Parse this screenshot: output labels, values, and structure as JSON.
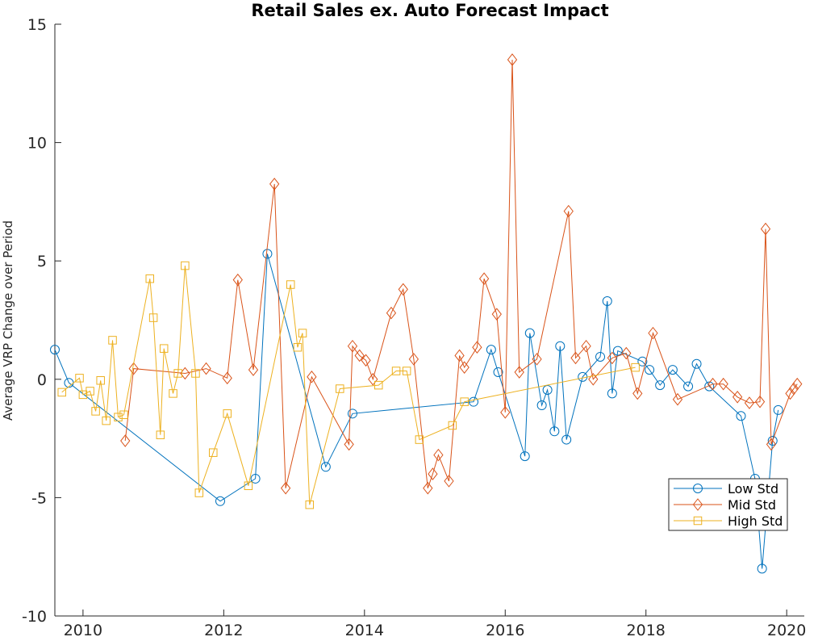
{
  "chart_data": {
    "type": "line",
    "title": "Retail Sales ex. Auto Forecast Impact",
    "xlabel": "",
    "ylabel": "Average VRP Change over Period",
    "xlim": [
      2009.6,
      2020.25
    ],
    "ylim": [
      -10,
      15
    ],
    "xticks": [
      2010,
      2012,
      2014,
      2016,
      2018,
      2020
    ],
    "yticks": [
      -10,
      -5,
      0,
      5,
      10,
      15
    ],
    "legend_position": "lower-right",
    "series": [
      {
        "name": "Low Std",
        "color": "#0072BD",
        "marker": "circle",
        "x": [
          2009.6,
          2009.8,
          2011.95,
          2012.45,
          2012.62,
          2013.45,
          2013.83,
          2015.55,
          2015.8,
          2015.9,
          2016.28,
          2016.35,
          2016.52,
          2016.6,
          2016.7,
          2016.78,
          2016.87,
          2017.1,
          2017.35,
          2017.45,
          2017.52,
          2017.6,
          2017.95,
          2018.05,
          2018.2,
          2018.38,
          2018.6,
          2018.72,
          2018.9,
          2019.35,
          2019.55,
          2019.65,
          2019.8,
          2019.88
        ],
        "y": [
          1.25,
          -0.15,
          -5.15,
          -4.2,
          5.3,
          -3.7,
          -1.45,
          -0.95,
          1.25,
          0.3,
          -3.25,
          1.95,
          -1.1,
          -0.45,
          -2.2,
          1.4,
          -2.55,
          0.1,
          0.95,
          3.3,
          -0.6,
          1.2,
          0.75,
          0.4,
          -0.25,
          0.4,
          -0.3,
          0.65,
          -0.3,
          -1.55,
          -4.2,
          -8.0,
          -2.6,
          -1.3
        ]
      },
      {
        "name": "Mid Std",
        "color": "#D95319",
        "marker": "diamond",
        "x": [
          2010.6,
          2010.72,
          2011.45,
          2011.75,
          2012.05,
          2012.2,
          2012.42,
          2012.72,
          2012.88,
          2013.25,
          2013.78,
          2013.83,
          2013.93,
          2014.02,
          2014.12,
          2014.38,
          2014.55,
          2014.7,
          2014.9,
          2014.97,
          2015.05,
          2015.2,
          2015.35,
          2015.42,
          2015.6,
          2015.7,
          2015.88,
          2016.0,
          2016.1,
          2016.2,
          2016.45,
          2016.9,
          2017.0,
          2017.15,
          2017.25,
          2017.52,
          2017.72,
          2017.88,
          2018.1,
          2018.45,
          2018.95,
          2019.1,
          2019.3,
          2019.47,
          2019.62,
          2019.7,
          2019.78,
          2020.05,
          2020.1,
          2020.15
        ],
        "y": [
          -2.6,
          0.45,
          0.25,
          0.45,
          0.05,
          4.2,
          0.4,
          8.25,
          -4.6,
          0.1,
          -2.75,
          1.4,
          1.0,
          0.8,
          0.0,
          2.8,
          3.8,
          0.85,
          -4.6,
          -4.0,
          -3.2,
          -4.3,
          1.0,
          0.5,
          1.35,
          4.25,
          2.75,
          -1.4,
          13.5,
          0.3,
          0.85,
          7.1,
          0.9,
          1.4,
          0.0,
          0.9,
          1.1,
          -0.6,
          1.95,
          -0.85,
          -0.2,
          -0.2,
          -0.75,
          -1.0,
          -0.95,
          6.35,
          -2.75,
          -0.6,
          -0.4,
          -0.2
        ]
      },
      {
        "name": "High Std",
        "color": "#EDB120",
        "marker": "square",
        "x": [
          2009.7,
          2009.95,
          2010.0,
          2010.1,
          2010.18,
          2010.25,
          2010.33,
          2010.42,
          2010.5,
          2010.58,
          2010.95,
          2011.0,
          2011.1,
          2011.15,
          2011.28,
          2011.35,
          2011.45,
          2011.6,
          2011.65,
          2011.85,
          2012.05,
          2012.35,
          2012.95,
          2013.05,
          2013.12,
          2013.22,
          2013.65,
          2014.2,
          2014.45,
          2014.6,
          2014.78,
          2015.25,
          2015.42,
          2017.85
        ],
        "y": [
          -0.55,
          0.05,
          -0.65,
          -0.5,
          -1.35,
          -0.05,
          -1.75,
          1.65,
          -1.6,
          -1.5,
          4.25,
          2.6,
          -2.35,
          1.3,
          -0.6,
          0.25,
          4.8,
          0.25,
          -4.8,
          -3.1,
          -1.45,
          -4.5,
          4.0,
          1.35,
          1.95,
          -5.3,
          -0.4,
          -0.25,
          0.35,
          0.35,
          -2.55,
          -1.95,
          -0.95,
          0.5
        ]
      }
    ]
  }
}
